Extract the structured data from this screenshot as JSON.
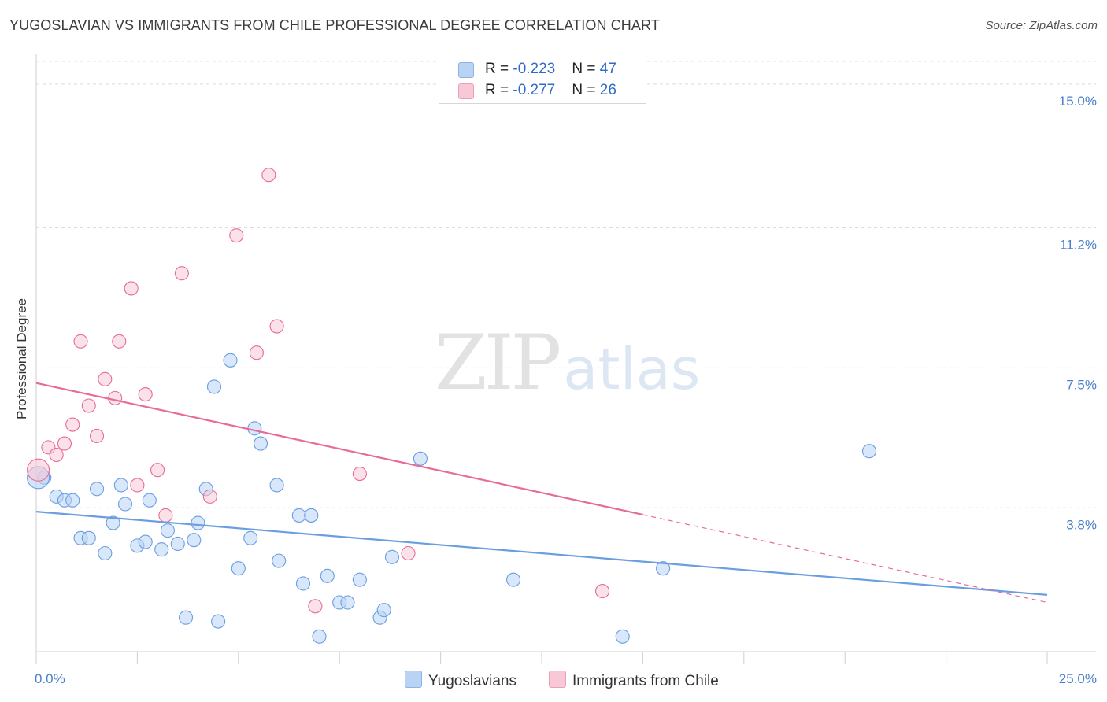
{
  "header": {
    "title": "YUGOSLAVIAN VS IMMIGRANTS FROM CHILE PROFESSIONAL DEGREE CORRELATION CHART",
    "source": "Source: ZipAtlas.com"
  },
  "watermark": {
    "zip": "ZIP",
    "atlas": "atlas"
  },
  "legend_top": {
    "rows": [
      {
        "r_label": "R = ",
        "r_value": "-0.223",
        "n_label": "N = ",
        "n_value": "47",
        "color": "#b8d3f4"
      },
      {
        "r_label": "R = ",
        "r_value": "-0.277",
        "n_label": "N = ",
        "n_value": "26",
        "color": "#f8c8d6"
      }
    ]
  },
  "legend_bottom": {
    "series1": "Yugoslavians",
    "series2": "Immigrants from Chile"
  },
  "chart_data": {
    "type": "scatter",
    "title": "YUGOSLAVIAN VS IMMIGRANTS FROM CHILE PROFESSIONAL DEGREE CORRELATION CHART",
    "xlabel": "",
    "ylabel": "Professional Degree",
    "xlim": [
      0,
      25
    ],
    "ylim": [
      0,
      15.6
    ],
    "x_tick_labels": [
      "0.0%",
      "25.0%"
    ],
    "y_ticks": [
      3.8,
      7.5,
      11.2,
      15.0
    ],
    "y_tick_labels": [
      "3.8%",
      "7.5%",
      "11.2%",
      "15.0%"
    ],
    "grid": "horizontal dashed",
    "legend_position": "top-center",
    "series": [
      {
        "name": "Yugoslavians",
        "color": "#6a9ee0",
        "fill": "#b8d3f4",
        "trend": {
          "x0": 0,
          "y0": 3.7,
          "x1": 25,
          "y1": 1.5,
          "solid_until": 25
        },
        "points": [
          [
            0.2,
            4.6
          ],
          [
            0.5,
            4.1
          ],
          [
            0.7,
            4.0
          ],
          [
            0.9,
            4.0
          ],
          [
            1.1,
            3.0
          ],
          [
            1.3,
            3.0
          ],
          [
            1.5,
            4.3
          ],
          [
            1.7,
            2.6
          ],
          [
            1.9,
            3.4
          ],
          [
            2.1,
            4.4
          ],
          [
            2.2,
            3.9
          ],
          [
            2.5,
            2.8
          ],
          [
            2.7,
            2.9
          ],
          [
            2.8,
            4.0
          ],
          [
            3.1,
            2.7
          ],
          [
            3.25,
            3.2
          ],
          [
            3.5,
            2.85
          ],
          [
            3.7,
            0.9
          ],
          [
            3.9,
            2.95
          ],
          [
            4.0,
            3.4
          ],
          [
            4.2,
            4.3
          ],
          [
            4.4,
            7.0
          ],
          [
            4.5,
            0.8
          ],
          [
            4.8,
            7.7
          ],
          [
            5.0,
            2.2
          ],
          [
            5.3,
            3.0
          ],
          [
            5.4,
            5.9
          ],
          [
            5.55,
            5.5
          ],
          [
            5.95,
            4.4
          ],
          [
            6.0,
            2.4
          ],
          [
            6.5,
            3.6
          ],
          [
            6.6,
            1.8
          ],
          [
            6.8,
            3.6
          ],
          [
            7.0,
            0.4
          ],
          [
            7.2,
            2.0
          ],
          [
            7.5,
            1.3
          ],
          [
            7.7,
            1.3
          ],
          [
            8.0,
            1.9
          ],
          [
            8.5,
            0.9
          ],
          [
            8.6,
            1.1
          ],
          [
            8.8,
            2.5
          ],
          [
            9.5,
            5.1
          ],
          [
            11.8,
            1.9
          ],
          [
            14.5,
            0.4
          ],
          [
            15.5,
            2.2
          ],
          [
            20.6,
            5.3
          ],
          [
            0.05,
            4.6
          ]
        ]
      },
      {
        "name": "Immigrants from Chile",
        "color": "#e86b98",
        "fill": "#f8c8d6",
        "trend": {
          "x0": 0,
          "y0": 7.1,
          "x1": 25,
          "y1": 1.3,
          "solid_until": 15
        },
        "points": [
          [
            0.05,
            4.8
          ],
          [
            0.3,
            5.4
          ],
          [
            0.5,
            5.2
          ],
          [
            0.7,
            5.5
          ],
          [
            0.9,
            6.0
          ],
          [
            1.1,
            8.2
          ],
          [
            1.3,
            6.5
          ],
          [
            1.5,
            5.7
          ],
          [
            1.7,
            7.2
          ],
          [
            1.95,
            6.7
          ],
          [
            2.05,
            8.2
          ],
          [
            2.35,
            9.6
          ],
          [
            2.5,
            4.4
          ],
          [
            2.7,
            6.8
          ],
          [
            3.0,
            4.8
          ],
          [
            3.2,
            3.6
          ],
          [
            3.6,
            10.0
          ],
          [
            4.3,
            4.1
          ],
          [
            4.95,
            11.0
          ],
          [
            5.45,
            7.9
          ],
          [
            5.75,
            12.6
          ],
          [
            5.95,
            8.6
          ],
          [
            6.9,
            1.2
          ],
          [
            8.0,
            4.7
          ],
          [
            9.2,
            2.6
          ],
          [
            14.0,
            1.6
          ]
        ]
      }
    ]
  }
}
